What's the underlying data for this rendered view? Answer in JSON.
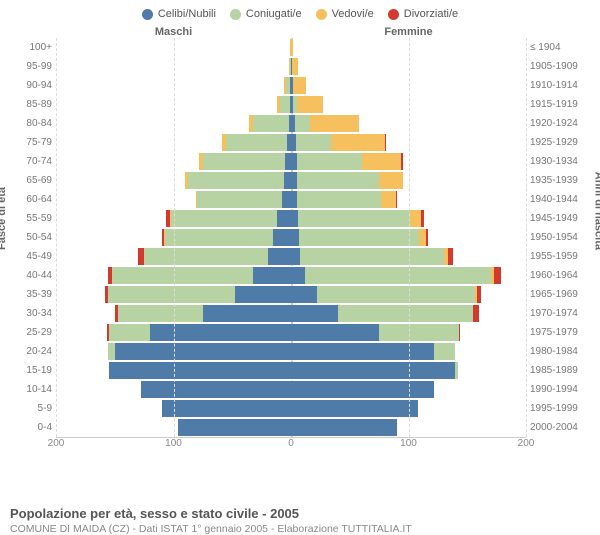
{
  "chart": {
    "type": "population-pyramid",
    "legend": [
      {
        "label": "Celibi/Nubili",
        "color": "#4f7ba8"
      },
      {
        "label": "Coniugati/e",
        "color": "#b7d2a3"
      },
      {
        "label": "Vedovi/e",
        "color": "#f7c05f"
      },
      {
        "label": "Divorziati/e",
        "color": "#d23a2e"
      }
    ],
    "colors": {
      "single": "#4f7ba8",
      "married": "#b7d2a3",
      "widowed": "#f7c05f",
      "divorced": "#d23a2e",
      "grid": "#dddddd",
      "center": "#cccccc",
      "text": "#777777",
      "bg": "#ffffff"
    },
    "header_male": "Maschi",
    "header_female": "Femmine",
    "y_left_title": "Fasce di età",
    "y_right_title": "Anni di nascita",
    "x_ticks": [
      200,
      100,
      0,
      100,
      200
    ],
    "x_max": 200,
    "age_labels": [
      "100+",
      "95-99",
      "90-94",
      "85-89",
      "80-84",
      "75-79",
      "70-74",
      "65-69",
      "60-64",
      "55-59",
      "50-54",
      "45-49",
      "40-44",
      "35-39",
      "30-34",
      "25-29",
      "20-24",
      "15-19",
      "10-14",
      "5-9",
      "0-4"
    ],
    "birth_labels": [
      "≤ 1904",
      "1905-1909",
      "1910-1914",
      "1915-1919",
      "1920-1924",
      "1925-1929",
      "1930-1934",
      "1935-1939",
      "1940-1944",
      "1945-1949",
      "1950-1954",
      "1955-1959",
      "1960-1964",
      "1965-1969",
      "1970-1974",
      "1975-1979",
      "1980-1984",
      "1985-1989",
      "1990-1994",
      "1995-1999",
      "2000-2004"
    ],
    "rows": [
      {
        "m": {
          "single": 0,
          "married": 0,
          "widowed": 1,
          "divorced": 0
        },
        "f": {
          "single": 0,
          "married": 0,
          "widowed": 2,
          "divorced": 0
        }
      },
      {
        "m": {
          "single": 0,
          "married": 1,
          "widowed": 1,
          "divorced": 0
        },
        "f": {
          "single": 1,
          "married": 0,
          "widowed": 5,
          "divorced": 0
        }
      },
      {
        "m": {
          "single": 1,
          "married": 3,
          "widowed": 2,
          "divorced": 0
        },
        "f": {
          "single": 2,
          "married": 0,
          "widowed": 11,
          "divorced": 0
        }
      },
      {
        "m": {
          "single": 1,
          "married": 8,
          "widowed": 3,
          "divorced": 0
        },
        "f": {
          "single": 2,
          "married": 3,
          "widowed": 22,
          "divorced": 0
        }
      },
      {
        "m": {
          "single": 2,
          "married": 30,
          "widowed": 4,
          "divorced": 0
        },
        "f": {
          "single": 3,
          "married": 13,
          "widowed": 42,
          "divorced": 0
        }
      },
      {
        "m": {
          "single": 3,
          "married": 52,
          "widowed": 4,
          "divorced": 0
        },
        "f": {
          "single": 4,
          "married": 30,
          "widowed": 46,
          "divorced": 1
        }
      },
      {
        "m": {
          "single": 5,
          "married": 70,
          "widowed": 3,
          "divorced": 0
        },
        "f": {
          "single": 5,
          "married": 55,
          "widowed": 34,
          "divorced": 1
        }
      },
      {
        "m": {
          "single": 6,
          "married": 82,
          "widowed": 2,
          "divorced": 0
        },
        "f": {
          "single": 5,
          "married": 70,
          "widowed": 20,
          "divorced": 0
        }
      },
      {
        "m": {
          "single": 8,
          "married": 72,
          "widowed": 1,
          "divorced": 0
        },
        "f": {
          "single": 5,
          "married": 72,
          "widowed": 12,
          "divorced": 1
        }
      },
      {
        "m": {
          "single": 12,
          "married": 90,
          "widowed": 1,
          "divorced": 3
        },
        "f": {
          "single": 6,
          "married": 95,
          "widowed": 10,
          "divorced": 2
        }
      },
      {
        "m": {
          "single": 15,
          "married": 92,
          "widowed": 1,
          "divorced": 2
        },
        "f": {
          "single": 7,
          "married": 102,
          "widowed": 6,
          "divorced": 2
        }
      },
      {
        "m": {
          "single": 20,
          "married": 105,
          "widowed": 0,
          "divorced": 5
        },
        "f": {
          "single": 8,
          "married": 122,
          "widowed": 4,
          "divorced": 4
        }
      },
      {
        "m": {
          "single": 32,
          "married": 120,
          "widowed": 0,
          "divorced": 4
        },
        "f": {
          "single": 12,
          "married": 158,
          "widowed": 3,
          "divorced": 6
        }
      },
      {
        "m": {
          "single": 48,
          "married": 108,
          "widowed": 0,
          "divorced": 2
        },
        "f": {
          "single": 22,
          "married": 135,
          "widowed": 1,
          "divorced": 4
        }
      },
      {
        "m": {
          "single": 75,
          "married": 72,
          "widowed": 0,
          "divorced": 3
        },
        "f": {
          "single": 40,
          "married": 115,
          "widowed": 0,
          "divorced": 5
        }
      },
      {
        "m": {
          "single": 120,
          "married": 35,
          "widowed": 0,
          "divorced": 2
        },
        "f": {
          "single": 75,
          "married": 68,
          "widowed": 0,
          "divorced": 1
        }
      },
      {
        "m": {
          "single": 150,
          "married": 6,
          "widowed": 0,
          "divorced": 0
        },
        "f": {
          "single": 122,
          "married": 18,
          "widowed": 0,
          "divorced": 0
        }
      },
      {
        "m": {
          "single": 155,
          "married": 0,
          "widowed": 0,
          "divorced": 0
        },
        "f": {
          "single": 140,
          "married": 2,
          "widowed": 0,
          "divorced": 0
        }
      },
      {
        "m": {
          "single": 128,
          "married": 0,
          "widowed": 0,
          "divorced": 0
        },
        "f": {
          "single": 122,
          "married": 0,
          "widowed": 0,
          "divorced": 0
        }
      },
      {
        "m": {
          "single": 110,
          "married": 0,
          "widowed": 0,
          "divorced": 0
        },
        "f": {
          "single": 108,
          "married": 0,
          "widowed": 0,
          "divorced": 0
        }
      },
      {
        "m": {
          "single": 96,
          "married": 0,
          "widowed": 0,
          "divorced": 0
        },
        "f": {
          "single": 90,
          "married": 0,
          "widowed": 0,
          "divorced": 0
        }
      }
    ]
  },
  "footer": {
    "title": "Popolazione per età, sesso e stato civile - 2005",
    "subtitle": "COMUNE DI MAIDA (CZ) - Dati ISTAT 1° gennaio 2005 - Elaborazione TUTTITALIA.IT"
  }
}
